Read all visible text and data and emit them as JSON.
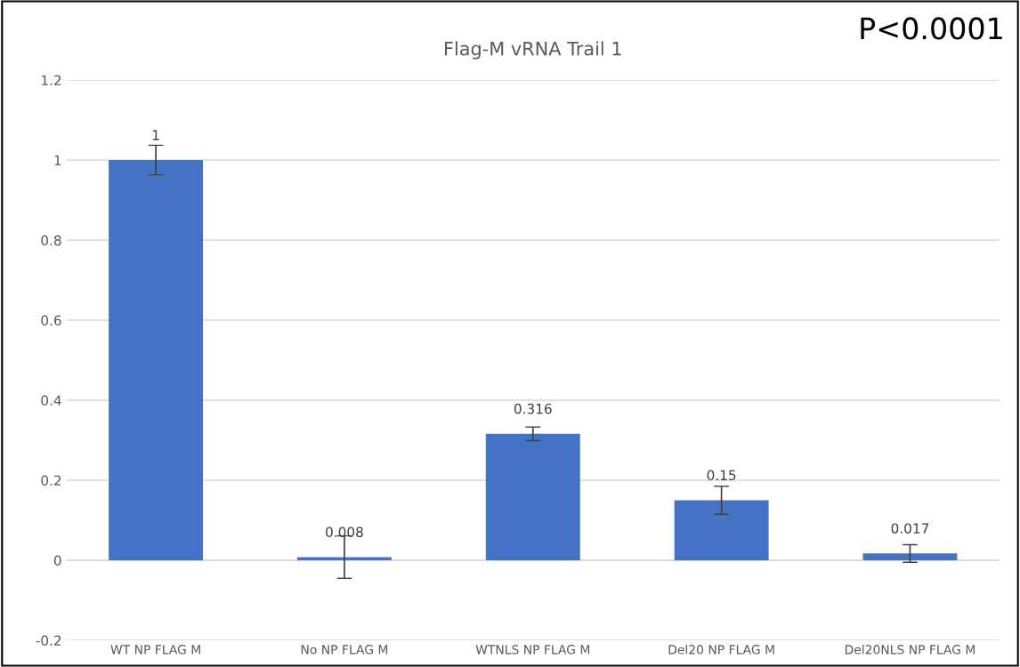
{
  "chart_data": {
    "type": "bar",
    "title": "Flag-M vRNA Trail 1",
    "categories": [
      "WT NP FLAG M",
      "No NP FLAG M",
      "WTNLS NP FLAG M",
      "Del20 NP FLAG M",
      "Del20NLS NP FLAG M"
    ],
    "values": [
      1,
      0.008,
      0.316,
      0.15,
      0.017
    ],
    "errors": [
      0.037,
      0.053,
      0.017,
      0.035,
      0.022
    ],
    "color": "#4472c4",
    "ylim": [
      -0.2,
      1.2
    ],
    "yticks": [
      -0.2,
      0,
      0.2,
      0.4,
      0.6,
      0.8,
      1,
      1.2
    ],
    "grid": "y",
    "data_labels": true,
    "annotations": [
      "P<0.0001"
    ]
  }
}
